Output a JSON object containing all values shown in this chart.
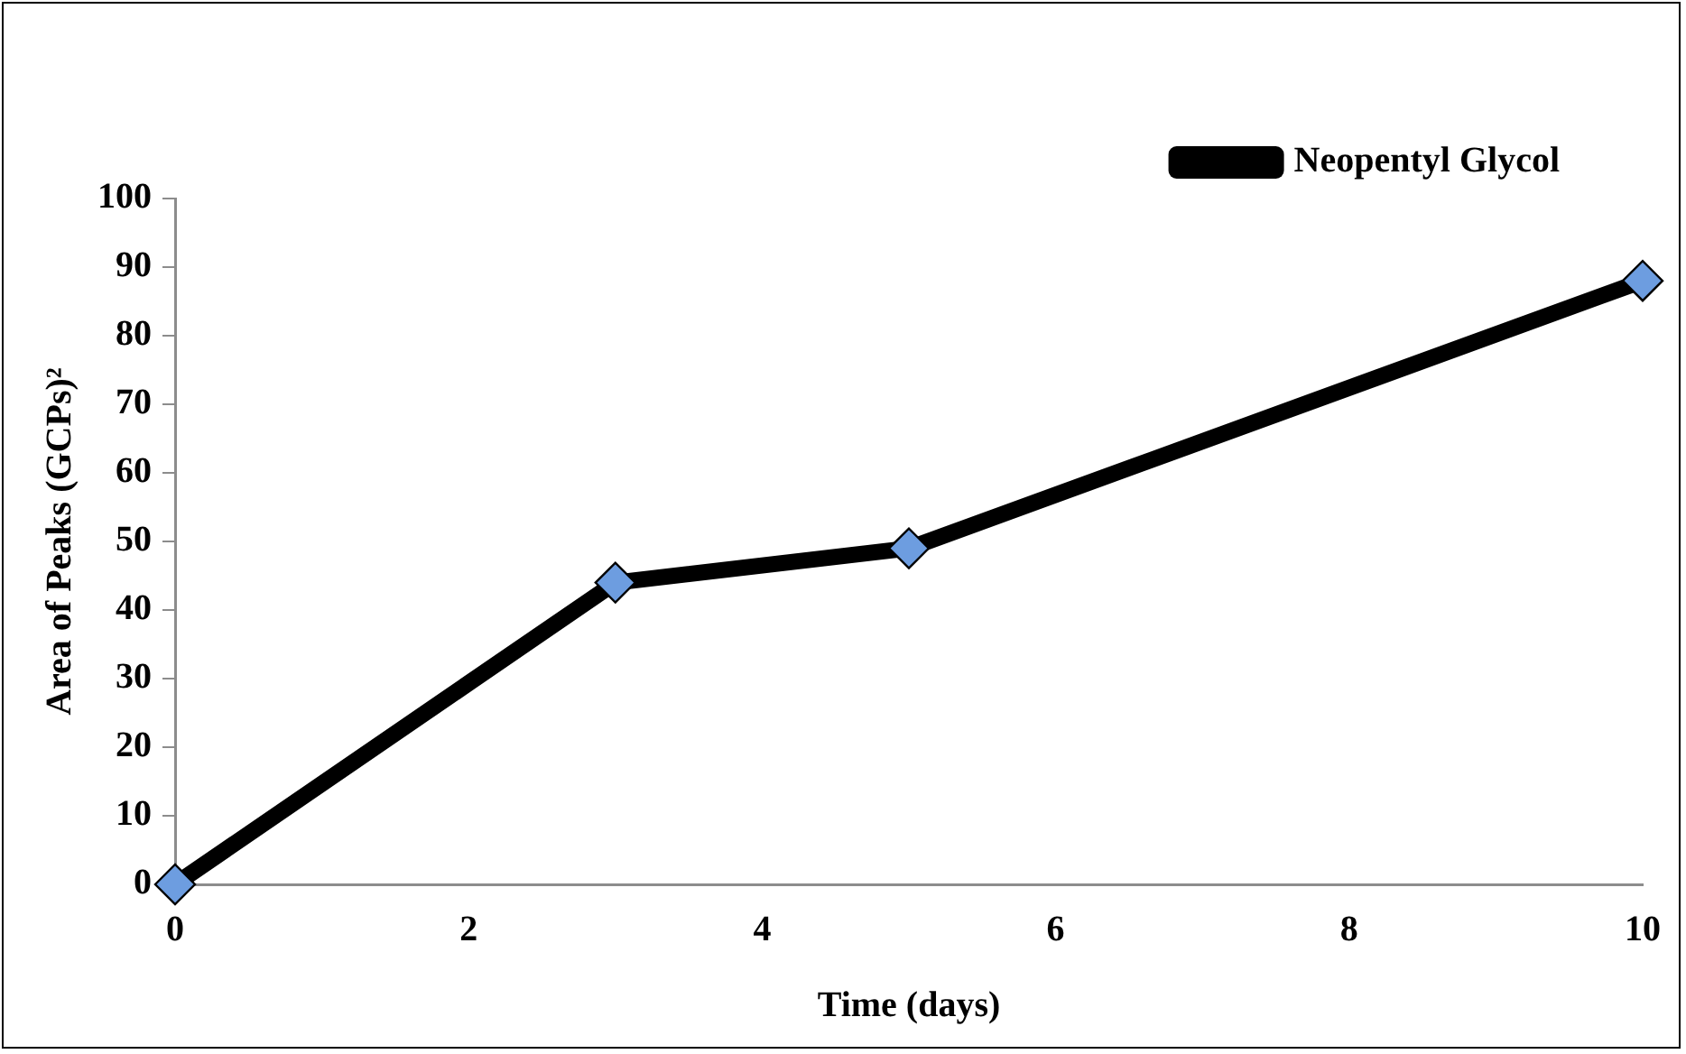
{
  "chart_data": {
    "type": "line",
    "xlabel": "Time (days)",
    "ylabel": "Area of Peaks (GCPs)²",
    "x": [
      0,
      3,
      5,
      10
    ],
    "series": [
      {
        "name": "Neopentyl Glycol",
        "color": "#000000",
        "values": [
          0,
          44,
          49,
          88
        ]
      }
    ],
    "xlim": [
      0,
      10
    ],
    "xticks": [
      0,
      2,
      4,
      6,
      8,
      10
    ],
    "ylim": [
      0,
      100
    ],
    "yticks": [
      0,
      10,
      20,
      30,
      40,
      50,
      60,
      70,
      80,
      90,
      100
    ],
    "grid": false,
    "legend": "top right",
    "marker": "diamond",
    "line_style": "solid"
  }
}
